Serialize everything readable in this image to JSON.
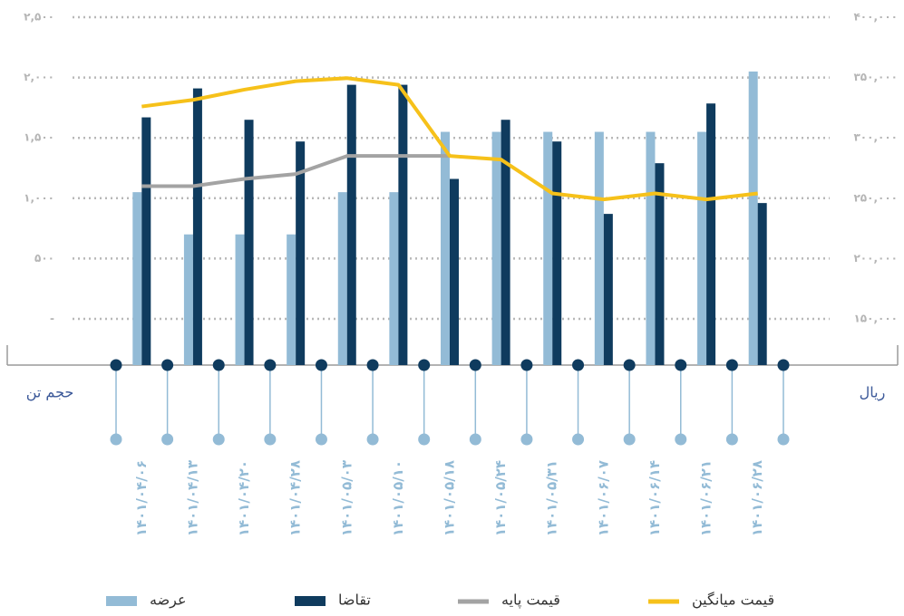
{
  "chart_data": {
    "type": "bar",
    "y_label": "حجم تن",
    "y2_label": "ریال",
    "categories": [
      "۱۴۰۱/۰۴/۰۶",
      "۱۴۰۱/۰۴/۱۳",
      "۱۴۰۱/۰۴/۲۰",
      "۱۴۰۱/۰۴/۲۸",
      "۱۴۰۱/۰۵/۰۳",
      "۱۴۰۱/۰۵/۱۰",
      "۱۴۰۱/۰۵/۱۸",
      "۱۴۰۱/۰۵/۲۴",
      "۱۴۰۱/۰۵/۳۱",
      "۱۴۰۱/۰۶/۰۷",
      "۱۴۰۱/۰۶/۱۴",
      "۱۴۰۱/۰۶/۲۱",
      "۱۴۰۱/۰۶/۲۸"
    ],
    "series": [
      {
        "name": "عرضه",
        "color": "#93bbd6",
        "type": "bar",
        "values": [
          1050,
          700,
          700,
          700,
          1050,
          1050,
          1550,
          1550,
          1550,
          1550,
          1550,
          1550,
          2050
        ]
      },
      {
        "name": "تقاضا",
        "color": "#0f3b5e",
        "type": "bar",
        "values": [
          1670,
          1910,
          1650,
          1470,
          1940,
          1940,
          1160,
          1650,
          1470,
          870,
          1290,
          1785,
          960
        ]
      },
      {
        "name": "قیمت پایه",
        "color": "#a3a3a3",
        "type": "line",
        "axis": "y2",
        "values": [
          260000,
          260000,
          266000,
          270000,
          285000,
          285000,
          285000,
          null,
          null,
          null,
          null,
          null,
          null
        ]
      },
      {
        "name": "قیمت میانگین",
        "color": "#f6c11a",
        "type": "line",
        "axis": "y2",
        "values": [
          326000,
          331500,
          340000,
          347000,
          349500,
          344000,
          285000,
          282000,
          254000,
          249000,
          254000,
          249000,
          254000
        ]
      }
    ],
    "ylim": [
      0,
      2500
    ],
    "yticks": [
      {
        "value": 0,
        "label": "-"
      },
      {
        "value": 500,
        "label": "۵۰۰"
      },
      {
        "value": 1000,
        "label": "۱,۰۰۰"
      },
      {
        "value": 1500,
        "label": "۱,۵۰۰"
      },
      {
        "value": 2000,
        "label": "۲,۰۰۰"
      },
      {
        "value": 2500,
        "label": "۲,۵۰۰"
      }
    ],
    "y2lim": [
      150000,
      400000
    ],
    "y2ticks": [
      {
        "value": 150000,
        "label": "۱۵۰,۰۰۰"
      },
      {
        "value": 200000,
        "label": "۲۰۰,۰۰۰"
      },
      {
        "value": 250000,
        "label": "۲۵۰,۰۰۰"
      },
      {
        "value": 300000,
        "label": "۳۰۰,۰۰۰"
      },
      {
        "value": 350000,
        "label": "۳۵۰,۰۰۰"
      },
      {
        "value": 400000,
        "label": "۴۰۰,۰۰۰"
      }
    ],
    "grid": true,
    "legend": "bottom"
  }
}
